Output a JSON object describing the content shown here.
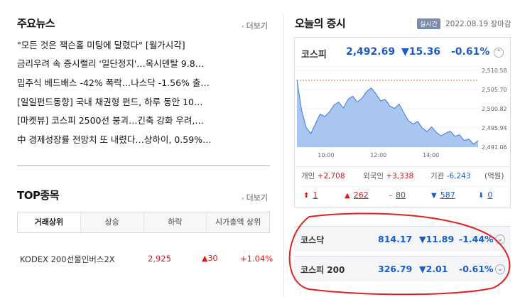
{
  "news": {
    "title": "주요뉴스",
    "more_label": "더보기",
    "items": [
      "\"모든 것은 잭슨홀 미팅에 달렸다\" [월가시각]",
      "금리우려 속 증시랠리 '일단정지'…옥시덴탈 9.8…",
      "밈주식 베드배스 -42% 폭락…나스닥 -1.56% 출…",
      "[일일펀드동향] 국내 채권형 펀드, 하루 동안 10…",
      "[마켓뷰] 코스피 2500선 붕괴…긴축 강화 우려,…",
      "中 경제성장률 전망치 또 내렸다…상하이, 0.59%…"
    ]
  },
  "top": {
    "title": "TOP종목",
    "more_label": "더보기",
    "tabs": [
      "거래상위",
      "상승",
      "하락",
      "시가총액 상위"
    ],
    "rows": [
      {
        "name": "KODEX 200선물인버스2X",
        "price": "2,925",
        "change": "▲30",
        "rate": "+1.04%"
      }
    ]
  },
  "market": {
    "title": "오늘의 증시",
    "badge": "실시간",
    "date": "2022.08.19 장마감",
    "kospi": {
      "name": "코스피",
      "value": "2,492.69",
      "change": "▼15.36",
      "rate": "-0.61%"
    },
    "chart_data": {
      "type": "area",
      "x_ticks": [
        "10:00",
        "12:00",
        "14:00"
      ],
      "y_ticks": [
        "2,510.58",
        "2,505.70",
        "2,500.82",
        "2,495.94",
        "2,491.06"
      ],
      "ylim": [
        2491.06,
        2510.58
      ],
      "reference": 2508.05,
      "series": [
        {
          "values": [
            2508.2,
            2500.5,
            2496.0,
            2494.5,
            2497.0,
            2499.5,
            2498.8,
            2500.0,
            2501.8,
            2502.5,
            2501.0,
            2503.2,
            2504.0,
            2502.5,
            2503.5,
            2505.2,
            2506.1,
            2504.6,
            2502.8,
            2503.2,
            2501.5,
            2500.9,
            2502.0,
            2499.8,
            2497.8,
            2496.9,
            2497.6,
            2495.9,
            2495.0,
            2496.2,
            2494.8,
            2493.9,
            2494.6,
            2495.1,
            2493.8,
            2494.2,
            2492.7,
            2493.1,
            2491.8,
            2492.69
          ]
        }
      ]
    },
    "investors": [
      {
        "label": "개인",
        "value": "+2,708"
      },
      {
        "label": "외국인",
        "value": "+3,338"
      },
      {
        "label": "기관",
        "value": "-6,243"
      }
    ],
    "unit": "(억원)",
    "breadth": [
      {
        "icon": "upper-limit-icon",
        "glyph": "⬆",
        "value": "1",
        "color": "#d9191a"
      },
      {
        "icon": "rise-icon",
        "glyph": "▲",
        "value": "262",
        "color": "#d9191a"
      },
      {
        "icon": "flat-icon",
        "glyph": "–",
        "value": "80",
        "color": "#555555"
      },
      {
        "icon": "fall-icon",
        "glyph": "▼",
        "value": "587",
        "color": "#1a5cc7"
      },
      {
        "icon": "lower-limit-icon",
        "glyph": "⬇",
        "value": "0",
        "color": "#1a5cc7"
      }
    ],
    "kosdaq": {
      "name": "코스닥",
      "value": "814.17",
      "change": "▼11.89",
      "rate": "-1.44%"
    },
    "kospi200": {
      "name": "코스피 200",
      "value": "326.79",
      "change": "▼2.01",
      "rate": "-0.61%"
    }
  }
}
